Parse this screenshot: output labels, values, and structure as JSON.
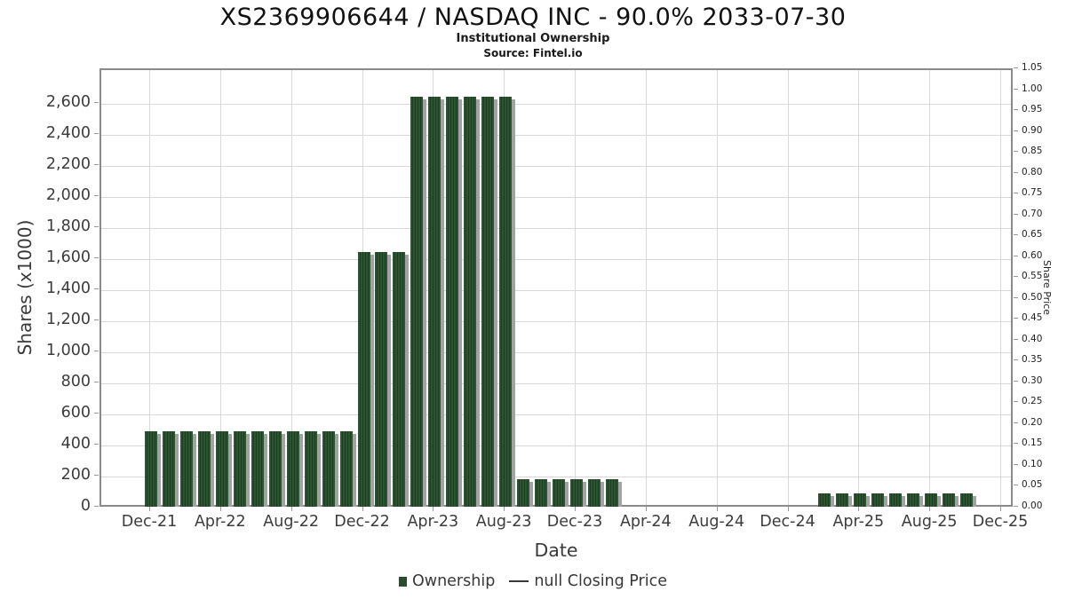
{
  "header": {
    "title": "XS2369906644 / NASDAQ INC - 90.0% 2033-07-30",
    "subtitle": "Institutional Ownership",
    "source": "Source: Fintel.io"
  },
  "chart_data": {
    "type": "bar",
    "title": "XS2369906644 / NASDAQ INC - 90.0% 2033-07-30",
    "subtitle": "Institutional Ownership",
    "source": "Source: Fintel.io",
    "grid": "on",
    "legend_position": "bottom-center",
    "x_axis": {
      "label": "Date",
      "ticks": [
        "Dec-21",
        "Apr-22",
        "Aug-22",
        "Dec-22",
        "Apr-23",
        "Aug-23",
        "Dec-23",
        "Apr-24",
        "Aug-24",
        "Dec-24",
        "Apr-25",
        "Aug-25",
        "Dec-25"
      ],
      "tick_month_indices": [
        0,
        4,
        8,
        12,
        16,
        20,
        24,
        28,
        32,
        36,
        40,
        44,
        48
      ]
    },
    "y_left": {
      "label": "Shares (x1000)",
      "tick_labels": [
        "0",
        "200",
        "400",
        "600",
        "800",
        "1,000",
        "1,200",
        "1,400",
        "1,600",
        "1,800",
        "2,000",
        "2,200",
        "2,400",
        "2,600"
      ],
      "tick_values": [
        0,
        200,
        400,
        600,
        800,
        1000,
        1200,
        1400,
        1600,
        1800,
        2000,
        2200,
        2400,
        2600
      ],
      "ylim": [
        0,
        2820
      ]
    },
    "y_right": {
      "label": "Share Price",
      "tick_labels": [
        "0.00",
        "0.05",
        "0.10",
        "0.15",
        "0.20",
        "0.25",
        "0.30",
        "0.35",
        "0.40",
        "0.45",
        "0.50",
        "0.55",
        "0.60",
        "0.65",
        "0.70",
        "0.75",
        "0.80",
        "0.85",
        "0.90",
        "0.95",
        "1.00",
        "1.05"
      ],
      "ylim": [
        0,
        1.05
      ]
    },
    "series": [
      {
        "name": "Ownership",
        "type": "bar",
        "unit": "shares x1000",
        "points": [
          {
            "month": "Dec-21",
            "shares": 500
          },
          {
            "month": "Jan-22",
            "shares": 500
          },
          {
            "month": "Feb-22",
            "shares": 500
          },
          {
            "month": "Mar-22",
            "shares": 500
          },
          {
            "month": "Apr-22",
            "shares": 500
          },
          {
            "month": "May-22",
            "shares": 500
          },
          {
            "month": "Jun-22",
            "shares": 500
          },
          {
            "month": "Jul-22",
            "shares": 500
          },
          {
            "month": "Aug-22",
            "shares": 500
          },
          {
            "month": "Sep-22",
            "shares": 500
          },
          {
            "month": "Oct-22",
            "shares": 500
          },
          {
            "month": "Nov-22",
            "shares": 500
          },
          {
            "month": "Dec-22",
            "shares": 1650
          },
          {
            "month": "Jan-23",
            "shares": 1650
          },
          {
            "month": "Feb-23",
            "shares": 1650
          },
          {
            "month": "Mar-23",
            "shares": 2650
          },
          {
            "month": "Apr-23",
            "shares": 2650
          },
          {
            "month": "May-23",
            "shares": 2650
          },
          {
            "month": "Jun-23",
            "shares": 2650
          },
          {
            "month": "Jul-23",
            "shares": 2650
          },
          {
            "month": "Aug-23",
            "shares": 2650
          },
          {
            "month": "Sep-23",
            "shares": 190
          },
          {
            "month": "Oct-23",
            "shares": 190
          },
          {
            "month": "Nov-23",
            "shares": 190
          },
          {
            "month": "Dec-23",
            "shares": 190
          },
          {
            "month": "Jan-24",
            "shares": 190
          },
          {
            "month": "Feb-24",
            "shares": 190
          },
          {
            "month": "Mar-24",
            "shares": 0
          },
          {
            "month": "Apr-24",
            "shares": 0
          },
          {
            "month": "May-24",
            "shares": 0
          },
          {
            "month": "Jun-24",
            "shares": 0
          },
          {
            "month": "Jul-24",
            "shares": 0
          },
          {
            "month": "Aug-24",
            "shares": 0
          },
          {
            "month": "Sep-24",
            "shares": 0
          },
          {
            "month": "Oct-24",
            "shares": 0
          },
          {
            "month": "Nov-24",
            "shares": 0
          },
          {
            "month": "Dec-24",
            "shares": 0
          },
          {
            "month": "Jan-25",
            "shares": 0
          },
          {
            "month": "Feb-25",
            "shares": 100
          },
          {
            "month": "Mar-25",
            "shares": 100
          },
          {
            "month": "Apr-25",
            "shares": 100
          },
          {
            "month": "May-25",
            "shares": 100
          },
          {
            "month": "Jun-25",
            "shares": 100
          },
          {
            "month": "Jul-25",
            "shares": 100
          },
          {
            "month": "Aug-25",
            "shares": 100
          },
          {
            "month": "Sep-25",
            "shares": 100
          },
          {
            "month": "Oct-25",
            "shares": 100
          },
          {
            "month": "Nov-25",
            "shares": 0
          },
          {
            "month": "Dec-25",
            "shares": 0
          }
        ]
      },
      {
        "name": "null Closing Price",
        "type": "line",
        "points": []
      }
    ],
    "legend": [
      {
        "label": "Ownership",
        "marker": "square"
      },
      {
        "label": "null Closing Price",
        "marker": "dash"
      }
    ],
    "colors": {
      "bar_green": "#2d5431",
      "bar_stripe": "#1e3c24",
      "bar_shadow": "#a2a2a2",
      "gridline": "#d9d9d9",
      "axis_border": "#8a8a8a",
      "text": "#3a3a3a"
    }
  }
}
